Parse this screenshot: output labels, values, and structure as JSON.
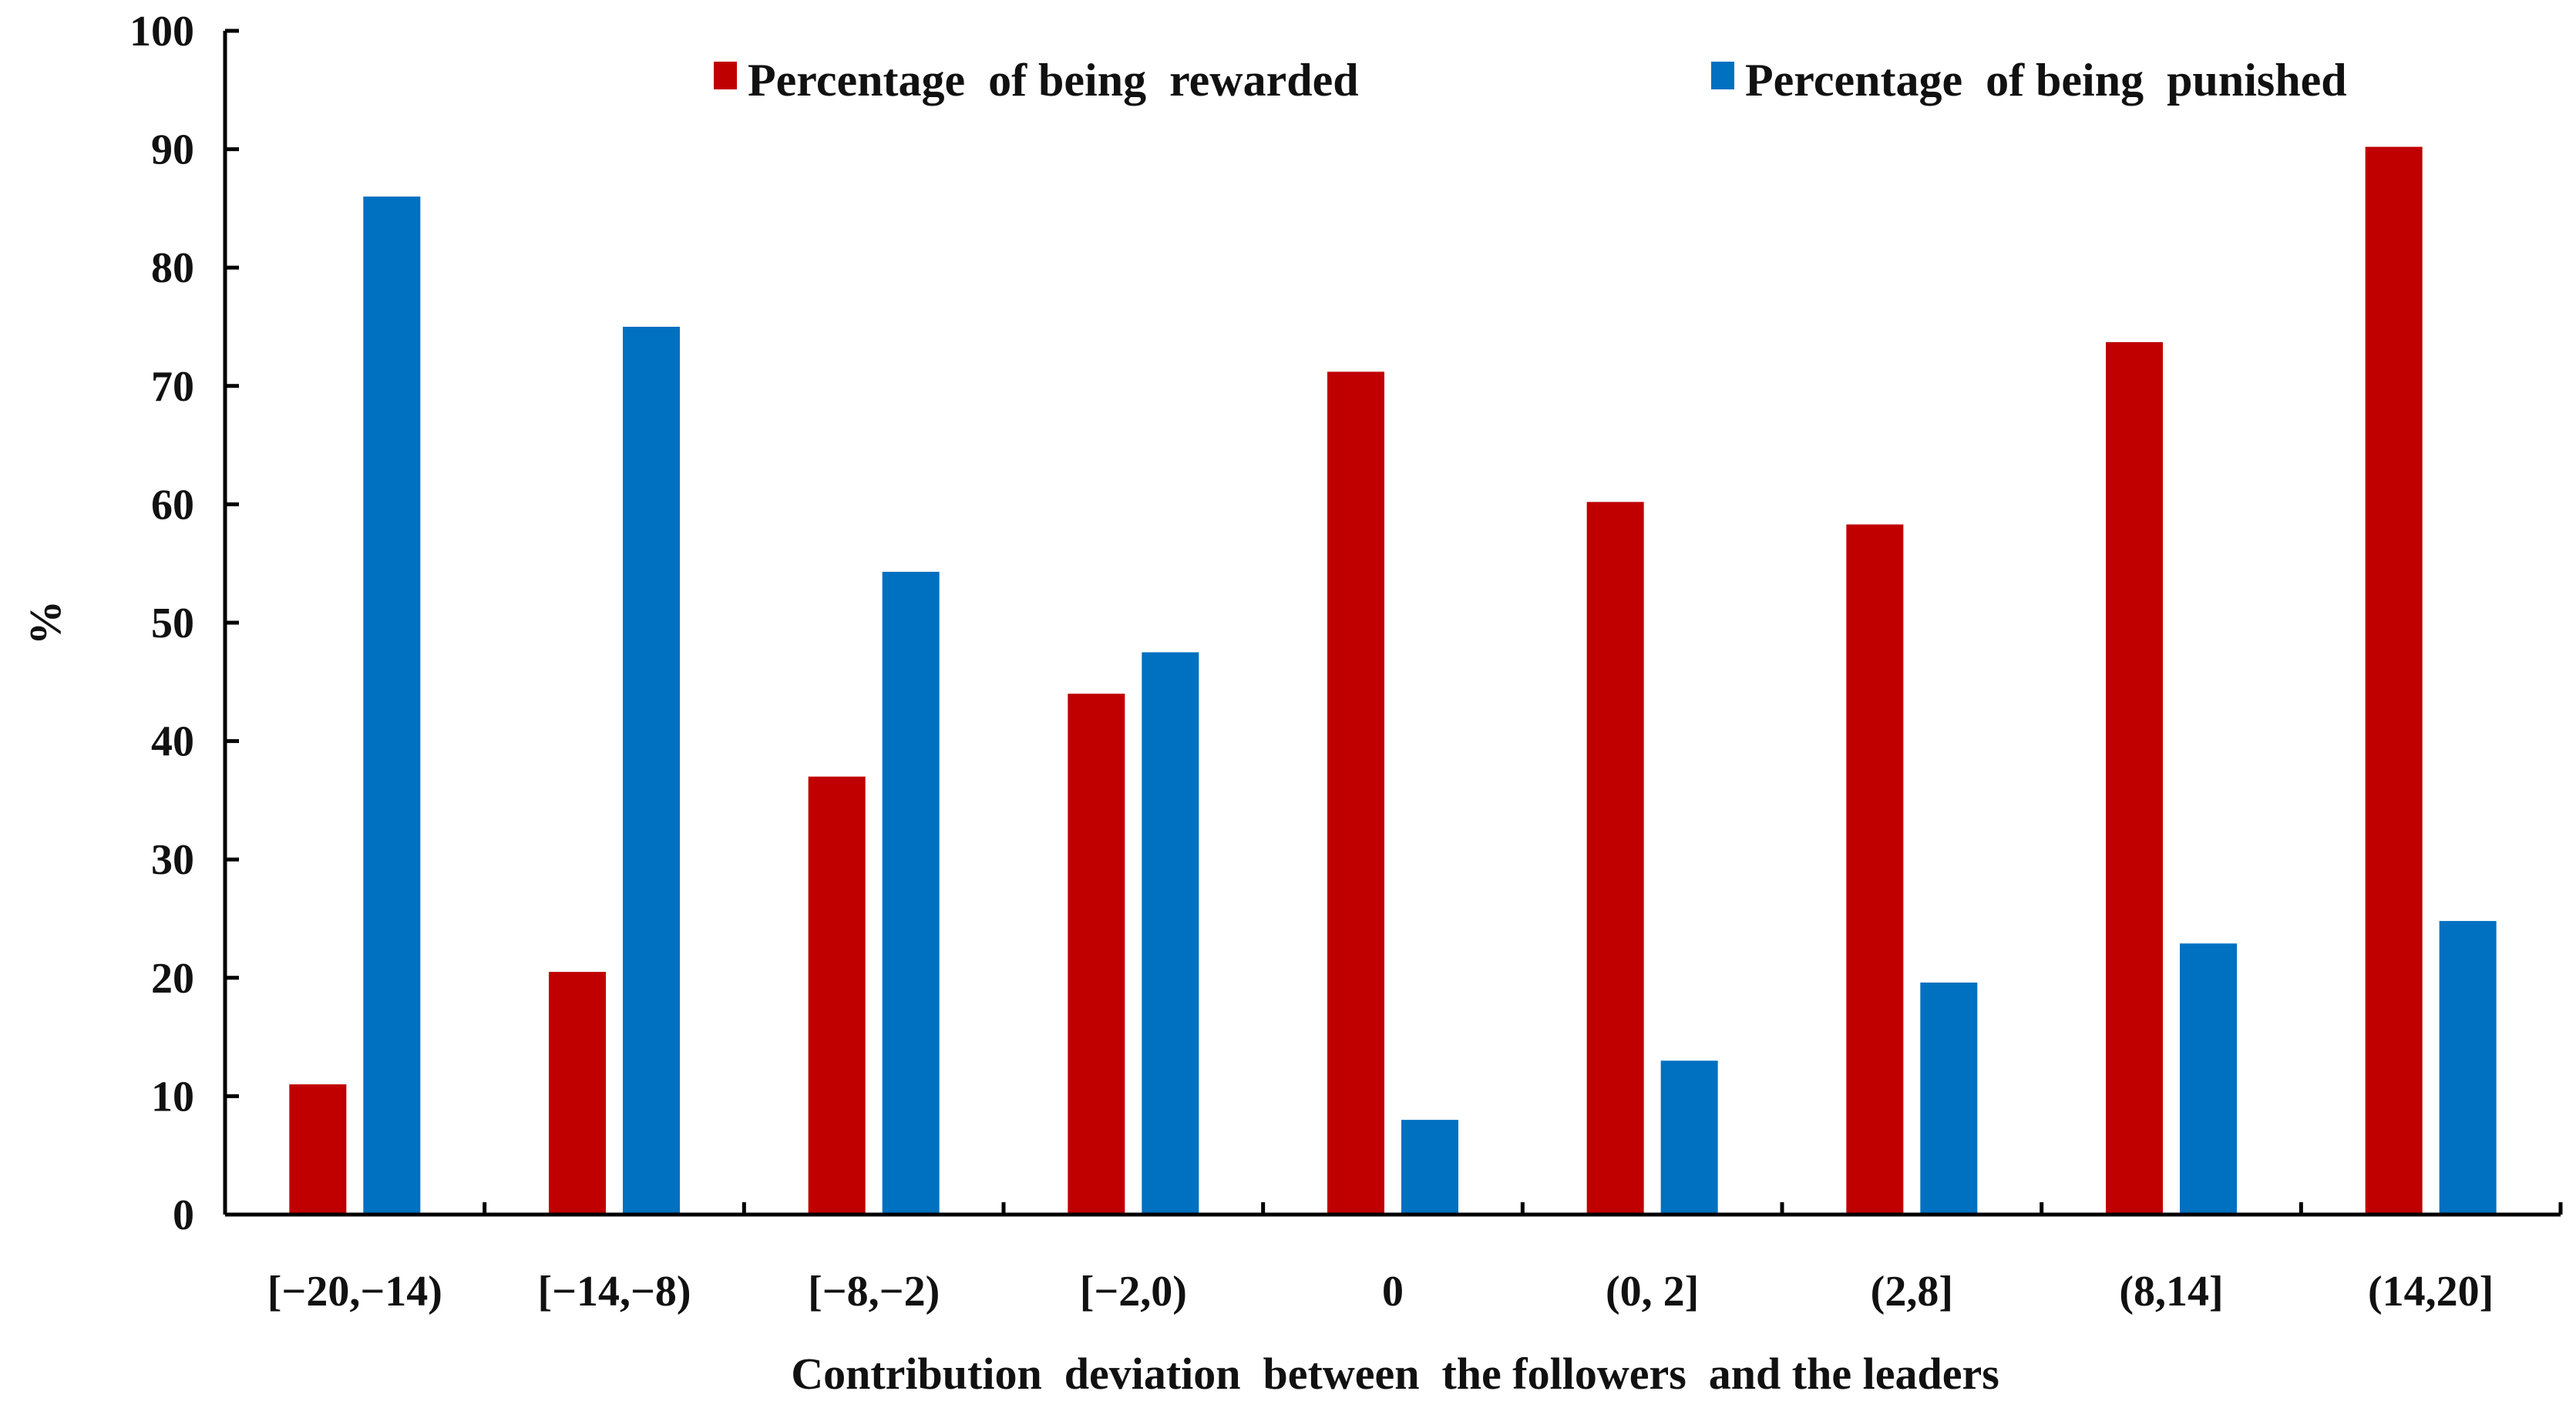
{
  "chart_data": {
    "type": "bar",
    "title": "",
    "xlabel": "Contribution  deviation  between  the followers  and the leaders",
    "ylabel": "%",
    "ylim": [
      0,
      100
    ],
    "yticks": [
      "0",
      "10",
      "20",
      "30",
      "40",
      "50",
      "60",
      "70",
      "80",
      "90",
      "100"
    ],
    "grid": false,
    "legend_position": "top",
    "categories": [
      "[−20,−14)",
      "[−14,−8)",
      "[−8,−2)",
      "[−2,0)",
      "0",
      "(0, 2]",
      "(2,8]",
      "(8,14]",
      "(14,20]"
    ],
    "series": [
      {
        "name": "Percentage  of being  rewarded",
        "color": "#C00000",
        "values": [
          11,
          20.5,
          37,
          44,
          71.2,
          60.2,
          58.3,
          73.7,
          90.2
        ]
      },
      {
        "name": "Percentage  of being  punished",
        "color": "#0070C0",
        "values": [
          86,
          75,
          54.3,
          47.5,
          8,
          13,
          19.6,
          22.9,
          24.8
        ]
      }
    ]
  }
}
